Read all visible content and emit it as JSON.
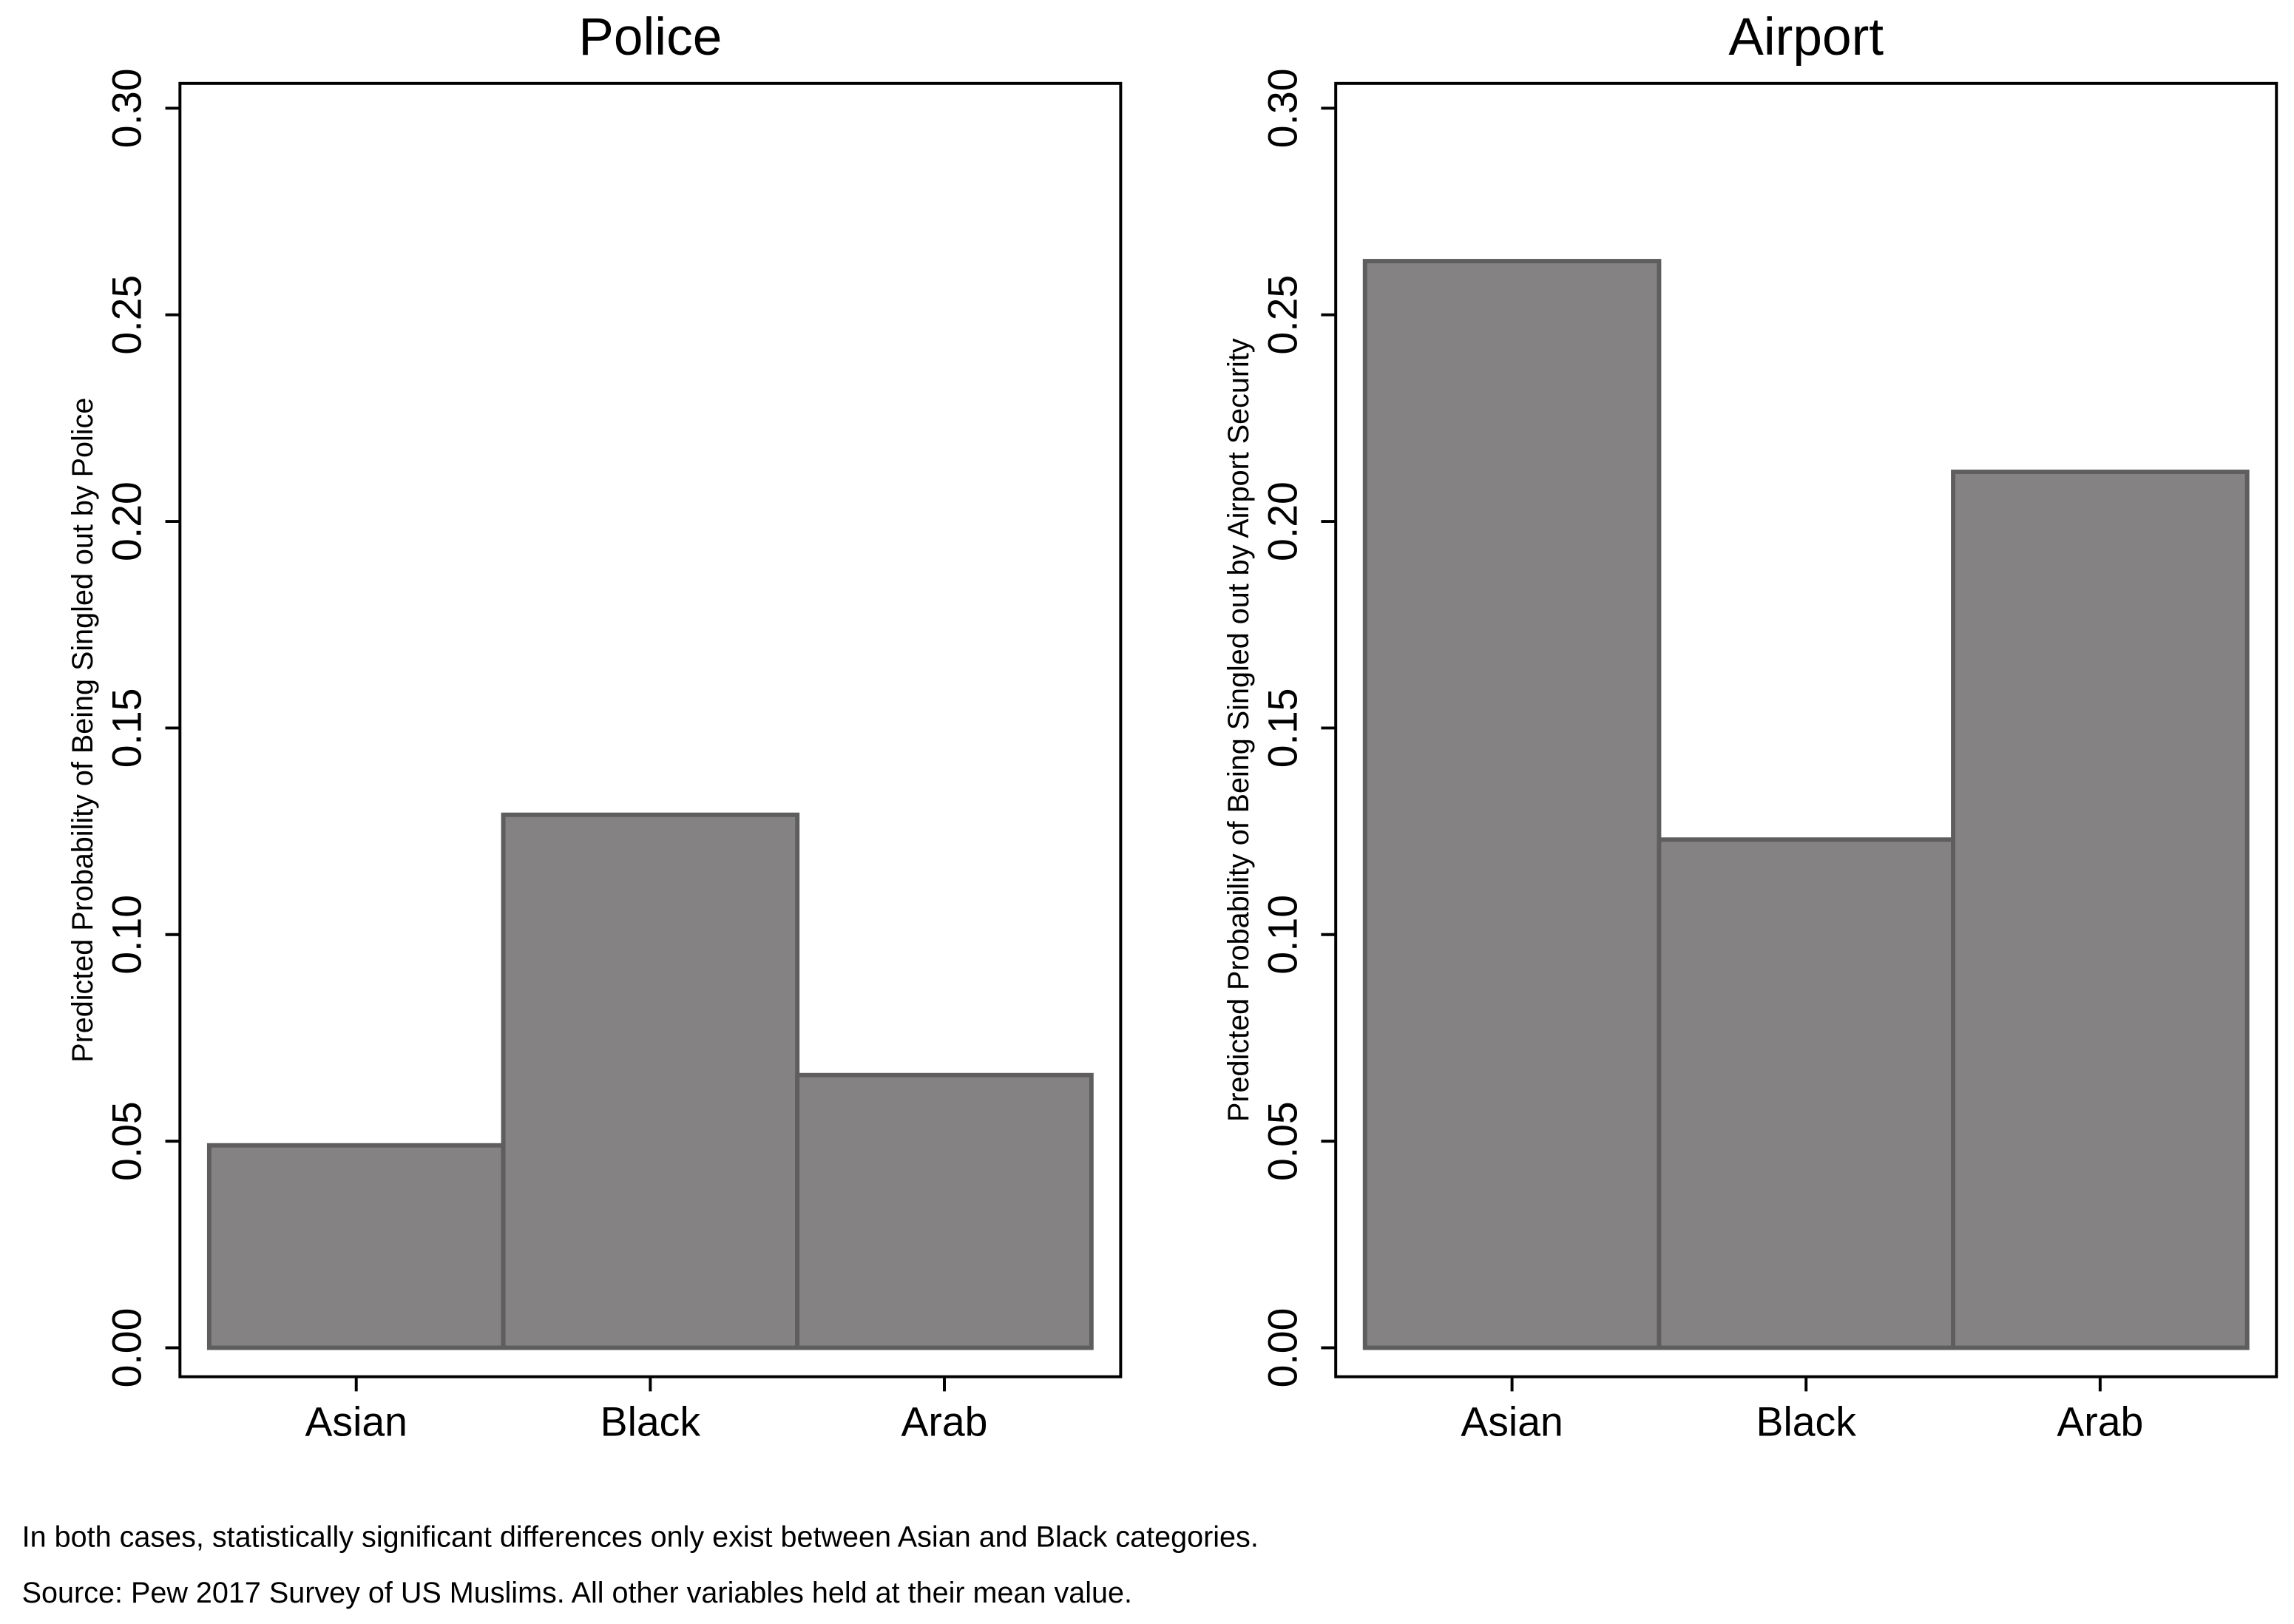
{
  "chart_data": [
    {
      "type": "bar",
      "title": "Police",
      "y_label": "Predicted Probability of Being Singled out by Police",
      "categories": [
        "Asian",
        "Black",
        "Arab"
      ],
      "values": [
        0.049,
        0.129,
        0.066
      ],
      "color": "#858283",
      "ylim": [
        -0.007,
        0.306
      ],
      "yticks": [
        {
          "value": 0,
          "label": "0.00"
        },
        {
          "value": 0.05,
          "label": "0.05"
        },
        {
          "value": 0.1,
          "label": "0.10"
        },
        {
          "value": 0.15,
          "label": "0.15"
        },
        {
          "value": 0.2,
          "label": "0.20"
        },
        {
          "value": 0.25,
          "label": "0.25"
        },
        {
          "value": 0.3,
          "label": "0.30"
        }
      ]
    },
    {
      "type": "bar",
      "title": "Airport",
      "y_label": "Predicted Probability of Being Singled out by Airport Security",
      "categories": [
        "Asian",
        "Black",
        "Arab"
      ],
      "values": [
        0.263,
        0.123,
        0.212
      ],
      "color": "#858283",
      "ylim": [
        -0.007,
        0.306
      ],
      "yticks": [
        {
          "value": 0,
          "label": "0.00"
        },
        {
          "value": 0.05,
          "label": "0.05"
        },
        {
          "value": 0.1,
          "label": "0.10"
        },
        {
          "value": 0.15,
          "label": "0.15"
        },
        {
          "value": 0.2,
          "label": "0.20"
        },
        {
          "value": 0.25,
          "label": "0.25"
        },
        {
          "value": 0.3,
          "label": "0.30"
        }
      ]
    }
  ],
  "notes": [
    "In both cases, statistically significant differences only exist between Asian and Black categories.",
    "Source: Pew 2017 Survey of US Muslims. All other variables held at their mean value."
  ]
}
